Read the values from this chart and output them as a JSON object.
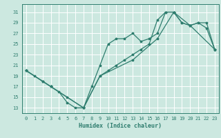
{
  "xlabel": "Humidex (Indice chaleur)",
  "bg_color": "#cce8e0",
  "grid_color": "#ffffff",
  "line_color": "#2e7d6e",
  "xlim": [
    -0.5,
    23.5
  ],
  "ylim": [
    12,
    32.5
  ],
  "xticks": [
    0,
    1,
    2,
    3,
    4,
    5,
    6,
    7,
    8,
    9,
    10,
    11,
    12,
    13,
    14,
    15,
    16,
    17,
    18,
    19,
    20,
    21,
    22,
    23
  ],
  "yticks": [
    13,
    15,
    17,
    19,
    21,
    23,
    25,
    27,
    29,
    31
  ],
  "curve1_x": [
    0,
    1,
    2,
    3,
    4,
    5,
    6,
    7,
    8,
    9,
    10,
    11,
    12,
    13,
    14,
    15,
    16,
    17,
    18,
    19,
    20,
    21,
    22,
    23
  ],
  "curve1_y": [
    20,
    19,
    18,
    17,
    16,
    14,
    13,
    13,
    17,
    21,
    25,
    26,
    26,
    27,
    25.5,
    26,
    27,
    31,
    31,
    29,
    28.5,
    29,
    28,
    24
  ],
  "curve2_x": [
    0,
    2,
    3,
    5,
    7,
    9,
    10,
    11,
    12,
    13,
    14,
    15,
    16,
    17,
    18,
    19,
    20,
    21,
    22,
    23
  ],
  "curve2_y": [
    20,
    18,
    17,
    15,
    13,
    19,
    20,
    21,
    22,
    23,
    24,
    25,
    29.5,
    31,
    31,
    29,
    28.5,
    29,
    29,
    24
  ],
  "curve3_x": [
    0,
    3,
    7,
    9,
    13,
    16,
    18,
    20,
    23
  ],
  "curve3_y": [
    20,
    17,
    13,
    19,
    22,
    26,
    31,
    28.5,
    24
  ]
}
